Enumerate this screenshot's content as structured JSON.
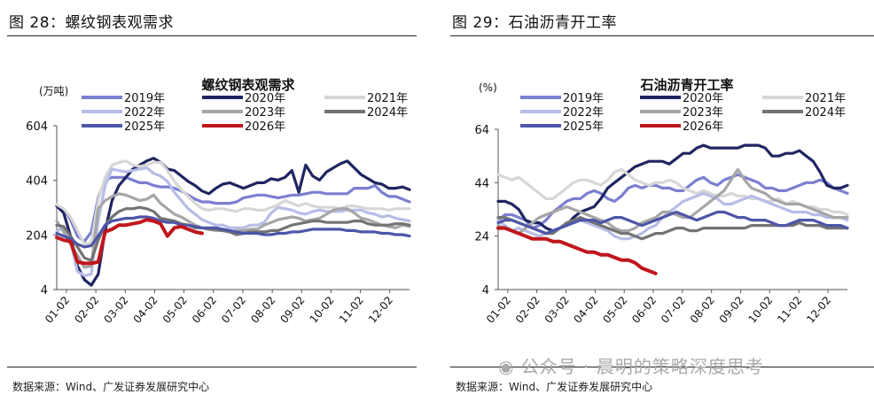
{
  "watermark": {
    "text": "公众号 · 晨明的策略深度思考"
  },
  "figures": [
    {
      "fig_title": "图 28：螺纹钢表观需求",
      "source": "数据来源：Wind、广发证券发展研究中心"
    },
    {
      "fig_title": "图 29：石油沥青开工率",
      "source": "数据来源：Wind、广发证券发展研究中心"
    }
  ],
  "colors": {
    "2019": "#7b7fd0",
    "2020": "#1f2560",
    "2021": "#d7d7d7",
    "2022": "#b7bde6",
    "2023": "#a6a6a6",
    "2024": "#737373",
    "2025": "#4e56a8",
    "2026": "#c0161c"
  },
  "chart_data": [
    {
      "type": "line",
      "title": "螺纹钢表观需求",
      "ylabel": "(万吨)",
      "ylim": [
        4,
        604
      ],
      "yticks": [
        "4",
        "204",
        "404",
        "604"
      ],
      "xticks": [
        "01-02",
        "02-02",
        "03-02",
        "04-02",
        "05-02",
        "06-02",
        "07-02",
        "08-02",
        "09-02",
        "10-02",
        "11-02",
        "12-02"
      ],
      "x_week_range": [
        0,
        51
      ],
      "legend": [
        [
          "2019年",
          "2020年",
          "2021年"
        ],
        [
          "2022年",
          "2023年",
          "2024年"
        ],
        [
          "2025年",
          "2026年"
        ]
      ],
      "series": [
        {
          "name": "2019年",
          "key": "2019",
          "values": [
            310,
            300,
            260,
            200,
            180,
            215,
            340,
            405,
            415,
            415,
            415,
            405,
            395,
            395,
            385,
            380,
            380,
            375,
            365,
            350,
            335,
            325,
            325,
            320,
            320,
            320,
            325,
            340,
            345,
            350,
            350,
            345,
            340,
            345,
            350,
            350,
            355,
            360,
            360,
            355,
            355,
            355,
            355,
            375,
            375,
            375,
            385,
            360,
            345,
            345,
            335,
            325
          ]
        },
        {
          "name": "2020年",
          "key": "2020",
          "values": [
            310,
            285,
            200,
            90,
            40,
            20,
            60,
            220,
            330,
            385,
            415,
            445,
            460,
            475,
            485,
            470,
            445,
            440,
            420,
            400,
            385,
            365,
            355,
            375,
            390,
            395,
            385,
            375,
            385,
            395,
            395,
            410,
            405,
            415,
            440,
            360,
            460,
            420,
            405,
            435,
            450,
            465,
            475,
            450,
            425,
            410,
            395,
            390,
            375,
            375,
            380,
            370
          ]
        },
        {
          "name": "2021年",
          "key": "2021",
          "values": [
            315,
            300,
            270,
            220,
            170,
            175,
            330,
            415,
            460,
            470,
            475,
            460,
            455,
            460,
            470,
            470,
            440,
            400,
            370,
            345,
            320,
            300,
            295,
            300,
            300,
            295,
            290,
            300,
            300,
            295,
            295,
            305,
            315,
            330,
            320,
            310,
            320,
            310,
            305,
            305,
            305,
            300,
            310,
            310,
            305,
            300,
            300,
            300,
            295,
            300,
            300,
            300
          ]
        },
        {
          "name": "2022年",
          "key": "2022",
          "values": [
            215,
            235,
            180,
            70,
            55,
            60,
            255,
            385,
            445,
            440,
            435,
            440,
            445,
            450,
            430,
            420,
            400,
            360,
            330,
            300,
            280,
            260,
            250,
            240,
            240,
            230,
            230,
            230,
            240,
            240,
            250,
            285,
            305,
            300,
            295,
            285,
            280,
            290,
            295,
            290,
            290,
            290,
            295,
            295,
            295,
            285,
            280,
            270,
            275,
            265,
            260,
            255
          ]
        },
        {
          "name": "2023年",
          "key": "2023",
          "values": [
            255,
            215,
            170,
            130,
            85,
            90,
            300,
            330,
            345,
            355,
            350,
            340,
            330,
            335,
            350,
            320,
            300,
            280,
            270,
            255,
            240,
            230,
            225,
            220,
            220,
            215,
            220,
            220,
            225,
            225,
            240,
            250,
            260,
            265,
            270,
            265,
            255,
            260,
            265,
            280,
            295,
            300,
            300,
            285,
            265,
            260,
            250,
            240,
            235,
            230,
            240,
            235
          ]
        },
        {
          "name": "2024年",
          "key": "2024",
          "values": [
            240,
            235,
            200,
            160,
            120,
            110,
            185,
            240,
            270,
            290,
            300,
            300,
            305,
            300,
            290,
            265,
            260,
            255,
            245,
            240,
            230,
            230,
            225,
            225,
            220,
            215,
            205,
            210,
            215,
            215,
            215,
            220,
            220,
            230,
            240,
            245,
            250,
            255,
            255,
            250,
            250,
            250,
            250,
            255,
            255,
            245,
            240,
            240,
            240,
            245,
            245,
            240
          ]
        },
        {
          "name": "2025年",
          "key": "2025",
          "values": [
            210,
            200,
            190,
            170,
            160,
            165,
            200,
            240,
            255,
            260,
            265,
            265,
            270,
            270,
            265,
            255,
            250,
            250,
            240,
            240,
            235,
            230,
            230,
            230,
            225,
            220,
            215,
            210,
            210,
            210,
            205,
            205,
            210,
            210,
            215,
            215,
            220,
            225,
            225,
            225,
            225,
            225,
            220,
            220,
            215,
            215,
            215,
            210,
            210,
            205,
            205,
            200
          ]
        },
        {
          "name": "2026年",
          "key": "2026",
          "values": [
            195,
            185,
            180,
            105,
            100,
            100,
            105,
            215,
            225,
            240,
            240,
            245,
            250,
            260,
            255,
            245,
            200,
            230,
            235,
            225,
            215,
            210
          ]
        }
      ]
    },
    {
      "type": "line",
      "title": "石油沥青开工率",
      "ylabel": "(%)",
      "ylim": [
        4,
        64
      ],
      "yticks": [
        "4",
        "24",
        "44",
        "64"
      ],
      "xticks": [
        "01-02",
        "02-02",
        "03-02",
        "04-02",
        "05-02",
        "06-02",
        "07-02",
        "08-02",
        "09-02",
        "10-02",
        "11-02",
        "12-02"
      ],
      "x_week_range": [
        0,
        51
      ],
      "legend": [
        [
          "2019年",
          "2020年",
          "2021年"
        ],
        [
          "2022年",
          "2023年",
          "2024年"
        ],
        [
          "2025年",
          "2026年"
        ]
      ],
      "series": [
        {
          "name": "2019年",
          "key": "2019",
          "values": [
            30,
            32,
            32,
            31,
            30,
            27,
            28,
            30,
            33,
            35,
            37,
            38,
            38,
            40,
            41,
            40,
            38,
            37,
            39,
            42,
            43,
            42,
            43,
            43,
            42,
            42,
            41,
            41,
            43,
            45,
            46,
            44,
            43,
            45,
            46,
            47,
            46,
            45,
            44,
            42,
            42,
            41,
            41,
            42,
            43,
            44,
            44,
            45,
            44,
            42,
            41,
            40
          ]
        },
        {
          "name": "2020年",
          "key": "2020",
          "values": [
            37,
            37,
            36,
            34,
            30,
            29,
            29,
            27,
            26,
            27,
            28,
            31,
            33,
            34,
            35,
            38,
            42,
            44,
            46,
            48,
            50,
            51,
            52,
            52,
            52,
            51,
            53,
            55,
            55,
            57,
            58,
            57,
            57,
            57,
            57,
            57,
            58,
            58,
            58,
            57,
            54,
            54,
            55,
            55,
            56,
            54,
            52,
            48,
            43,
            42,
            42,
            43
          ]
        },
        {
          "name": "2021年",
          "key": "2021",
          "values": [
            47,
            46,
            45,
            46,
            44,
            42,
            40,
            38,
            38,
            40,
            42,
            44,
            45,
            45,
            44,
            43,
            45,
            48,
            49,
            47,
            45,
            44,
            43,
            44,
            44,
            45,
            44,
            42,
            41,
            40,
            41,
            40,
            39,
            39,
            40,
            39,
            39,
            38,
            38,
            37,
            37,
            38,
            36,
            37,
            36,
            35,
            35,
            34,
            34,
            33,
            33,
            32
          ]
        },
        {
          "name": "2022年",
          "key": "2022",
          "values": [
            30,
            28,
            26,
            27,
            26,
            25,
            24,
            25,
            26,
            27,
            28,
            29,
            30,
            29,
            28,
            27,
            26,
            24,
            23,
            23,
            24,
            25,
            27,
            28,
            31,
            33,
            35,
            37,
            38,
            39,
            40,
            39,
            38,
            36,
            36,
            37,
            38,
            39,
            38,
            37,
            36,
            35,
            34,
            33,
            33,
            33,
            32,
            32,
            31,
            31,
            31,
            30
          ]
        },
        {
          "name": "2023年",
          "key": "2023",
          "values": [
            28,
            27,
            26,
            25,
            27,
            29,
            31,
            32,
            33,
            34,
            35,
            34,
            33,
            32,
            31,
            30,
            29,
            27,
            26,
            26,
            27,
            29,
            30,
            31,
            33,
            33,
            32,
            31,
            31,
            33,
            35,
            37,
            39,
            41,
            45,
            49,
            45,
            42,
            41,
            40,
            38,
            37,
            36,
            36,
            36,
            35,
            34,
            33,
            32,
            31,
            31,
            31
          ]
        },
        {
          "name": "2024年",
          "key": "2024",
          "values": [
            31,
            31,
            30,
            29,
            28,
            27,
            26,
            25,
            25,
            27,
            29,
            30,
            31,
            30,
            29,
            28,
            27,
            26,
            25,
            25,
            24,
            23,
            24,
            25,
            25,
            26,
            27,
            27,
            26,
            26,
            27,
            27,
            27,
            27,
            27,
            27,
            27,
            28,
            28,
            28,
            28,
            28,
            28,
            28,
            29,
            28,
            28,
            28,
            27,
            27,
            27,
            27
          ]
        },
        {
          "name": "2025年",
          "key": "2025",
          "values": [
            29,
            30,
            30,
            29,
            28,
            27,
            26,
            25,
            26,
            27,
            28,
            29,
            30,
            30,
            30,
            29,
            30,
            31,
            31,
            30,
            29,
            28,
            29,
            30,
            31,
            32,
            33,
            32,
            31,
            30,
            31,
            32,
            33,
            33,
            32,
            31,
            31,
            30,
            30,
            30,
            29,
            28,
            28,
            29,
            30,
            30,
            30,
            29,
            28,
            28,
            28,
            27
          ]
        },
        {
          "name": "2026年",
          "key": "2026",
          "values": [
            27,
            27,
            26,
            25,
            24,
            23,
            23,
            23,
            22,
            22,
            21,
            20,
            19,
            18,
            18,
            17,
            17,
            16,
            15,
            15,
            14,
            12,
            11,
            10
          ]
        }
      ]
    }
  ]
}
